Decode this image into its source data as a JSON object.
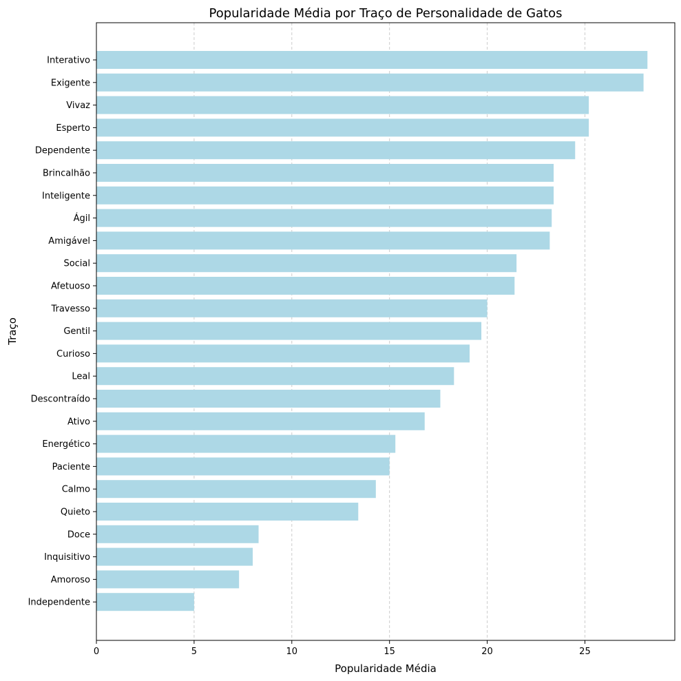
{
  "chart_data": {
    "type": "bar",
    "orientation": "horizontal",
    "title": "Popularidade Média por Traço de Personalidade de Gatos",
    "xlabel": "Popularidade Média",
    "ylabel": "Traço",
    "xlim": [
      0,
      29.6
    ],
    "xticks": [
      0,
      5,
      10,
      15,
      20,
      25
    ],
    "grid": "x-dashed",
    "bar_color": "#add8e6",
    "categories": [
      "Interativo",
      "Exigente",
      "Vivaz",
      "Esperto",
      "Dependente",
      "Brincalhão",
      "Inteligente",
      "Ágil",
      "Amigável",
      "Social",
      "Afetuoso",
      "Travesso",
      "Gentil",
      "Curioso",
      "Leal",
      "Descontraído",
      "Ativo",
      "Energético",
      "Paciente",
      "Calmo",
      "Quieto",
      "Doce",
      "Inquisitivo",
      "Amoroso",
      "Independente"
    ],
    "values": [
      28.2,
      28.0,
      25.2,
      25.2,
      24.5,
      23.4,
      23.4,
      23.3,
      23.2,
      21.5,
      21.4,
      20.0,
      19.7,
      19.1,
      18.3,
      17.6,
      16.8,
      15.3,
      15.0,
      14.3,
      13.4,
      8.3,
      8.0,
      7.3,
      5.0
    ]
  }
}
